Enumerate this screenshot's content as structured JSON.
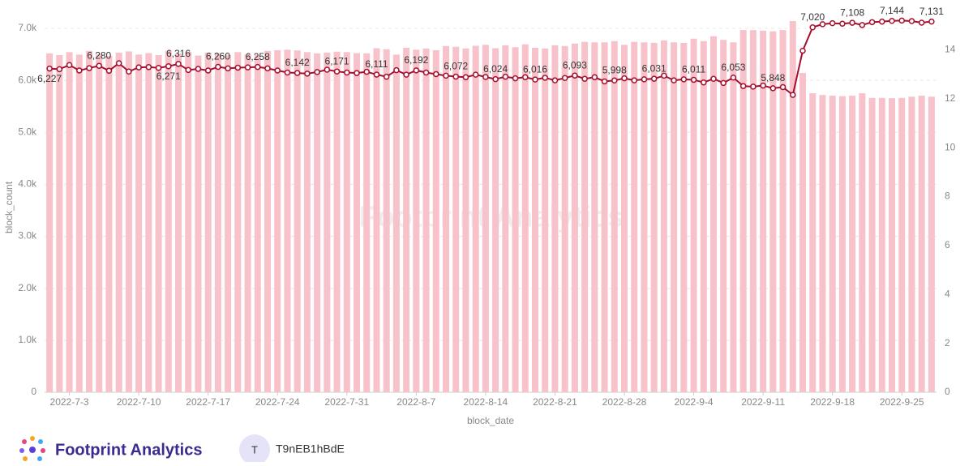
{
  "chart_data": {
    "type": "bar-line",
    "x_label": "block_date",
    "y_label": "block_count",
    "watermark": "Footprint Analytics",
    "categories": [
      null,
      null,
      "2022-7-3",
      null,
      null,
      null,
      null,
      null,
      null,
      "2022-7-10",
      null,
      null,
      null,
      null,
      null,
      null,
      "2022-7-17",
      null,
      null,
      null,
      null,
      null,
      null,
      "2022-7-24",
      null,
      null,
      null,
      null,
      null,
      null,
      "2022-7-31",
      null,
      null,
      null,
      null,
      null,
      null,
      "2022-8-7",
      null,
      null,
      null,
      null,
      null,
      null,
      "2022-8-14",
      null,
      null,
      null,
      null,
      null,
      null,
      "2022-8-21",
      null,
      null,
      null,
      null,
      null,
      null,
      "2022-8-28",
      null,
      null,
      null,
      null,
      null,
      null,
      "2022-9-4",
      null,
      null,
      null,
      null,
      null,
      null,
      "2022-9-11",
      null,
      null,
      null,
      null,
      null,
      null,
      "2022-9-18",
      null,
      null,
      null,
      null,
      null,
      null,
      "2022-9-25",
      null,
      null,
      null
    ],
    "series": [
      {
        "color": "#f7c2c9",
        "axis": "y2",
        "values": [
          13.85,
          13.78,
          13.9,
          13.8,
          13.95,
          13.82,
          13.75,
          13.88,
          13.93,
          13.8,
          13.86,
          13.78,
          13.96,
          13.84,
          13.92,
          13.76,
          13.88,
          13.85,
          13.79,
          13.9,
          13.82,
          13.78,
          13.95,
          13.98,
          14.0,
          13.97,
          13.9,
          13.85,
          13.88,
          13.92,
          13.9,
          13.86,
          13.85,
          14.06,
          14.02,
          13.8,
          14.08,
          14.0,
          14.05,
          13.98,
          14.15,
          14.12,
          14.05,
          14.16,
          14.2,
          14.06,
          14.18,
          14.1,
          14.22,
          14.08,
          14.05,
          14.18,
          14.15,
          14.25,
          14.32,
          14.3,
          14.3,
          14.35,
          14.2,
          14.32,
          14.3,
          14.28,
          14.38,
          14.3,
          14.28,
          14.45,
          14.35,
          14.55,
          14.4,
          14.3,
          14.8,
          14.8,
          14.78,
          14.75,
          14.8,
          15.17,
          13.05,
          12.22,
          12.15,
          12.12,
          12.1,
          12.12,
          12.22,
          12.03,
          12.03,
          12.02,
          12.03,
          12.08,
          12.12,
          12.08
        ]
      },
      {
        "color": "#a50f2d",
        "values": [
          6227,
          6215,
          6295,
          6190,
          6235,
          6280,
          6185,
          6330,
          6170,
          6250,
          6255,
          6240,
          6271,
          6316,
          6200,
          6220,
          6190,
          6260,
          6230,
          6245,
          6250,
          6258,
          6230,
          6190,
          6150,
          6142,
          6130,
          6160,
          6205,
          6171,
          6150,
          6140,
          6165,
          6111,
          6070,
          6195,
          6110,
          6192,
          6150,
          6120,
          6090,
          6072,
          6060,
          6110,
          6065,
          6024,
          6070,
          6040,
          6060,
          6016,
          6050,
          6000,
          6045,
          6093,
          6030,
          6060,
          5980,
          5998,
          6040,
          6000,
          6020,
          6031,
          6090,
          6000,
          6020,
          6011,
          5960,
          6030,
          5950,
          6053,
          5890,
          5880,
          5900,
          5848,
          5870,
          5720,
          6570,
          7020,
          7080,
          7100,
          7090,
          7108,
          7065,
          7120,
          7130,
          7144,
          7150,
          7140,
          7110,
          7131
        ],
        "value_labels": [
          "6,227",
          null,
          null,
          null,
          null,
          "6,280",
          null,
          null,
          null,
          null,
          null,
          null,
          "6,271",
          "6,316",
          null,
          null,
          null,
          "6,260",
          null,
          null,
          null,
          "6,258",
          null,
          null,
          null,
          "6,142",
          null,
          null,
          null,
          "6,171",
          null,
          null,
          null,
          "6,111",
          null,
          null,
          null,
          "6,192",
          null,
          null,
          null,
          "6,072",
          null,
          null,
          null,
          "6,024",
          null,
          null,
          null,
          "6,016",
          null,
          null,
          null,
          "6,093",
          null,
          null,
          null,
          "5,998",
          null,
          null,
          null,
          "6,031",
          null,
          null,
          null,
          "6,011",
          null,
          null,
          null,
          "6,053",
          null,
          null,
          null,
          "5,848",
          null,
          null,
          null,
          "7,020",
          null,
          null,
          null,
          "7,108",
          null,
          null,
          null,
          "7,144",
          null,
          null,
          null,
          "7,131"
        ]
      }
    ],
    "ylim": [
      0,
      7390
    ],
    "yticks": [
      0,
      {
        "value": 1000,
        "label": "1.0k"
      },
      {
        "value": 2000,
        "label": "2.0k"
      },
      {
        "value": 3000,
        "label": "3.0k"
      },
      {
        "value": 4000,
        "label": "4.0k"
      },
      {
        "value": 5000,
        "label": "5.0k"
      },
      {
        "value": 6000,
        "label": "6.0k"
      },
      {
        "value": 7000,
        "label": "7.0k"
      }
    ],
    "y2lim": [
      0,
      15.7
    ],
    "y2ticks": [
      0,
      2,
      4,
      6,
      8,
      10,
      12,
      14
    ],
    "grid": true
  },
  "footer": {
    "brand": "Footprint Analytics",
    "avatar": "T",
    "user": "T9nEB1hBdE"
  }
}
